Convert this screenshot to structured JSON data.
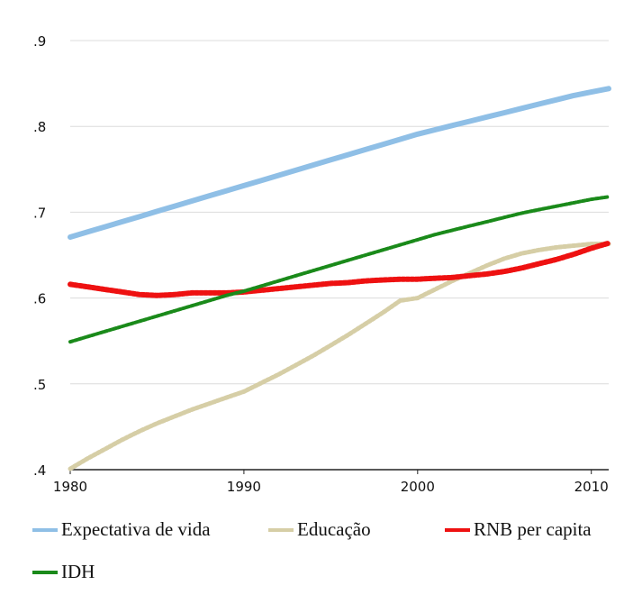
{
  "chart_data": {
    "type": "line",
    "title": "",
    "xlabel": "",
    "ylabel": "",
    "xlim": [
      1980,
      2011
    ],
    "ylim": [
      0.4,
      0.9
    ],
    "x_ticks": [
      1980,
      1990,
      2000,
      2010
    ],
    "x_tick_labels": [
      "1980",
      "1990",
      "2000",
      "2010"
    ],
    "y_ticks": [
      0.4,
      0.5,
      0.6,
      0.7,
      0.8,
      0.9
    ],
    "y_tick_labels": [
      ".4",
      ".5",
      ".6",
      ".7",
      ".8",
      ".9"
    ],
    "grid": "horizontal",
    "legend_position": "bottom",
    "x": [
      1980,
      1981,
      1982,
      1983,
      1984,
      1985,
      1986,
      1987,
      1988,
      1989,
      1990,
      1991,
      1992,
      1993,
      1994,
      1995,
      1996,
      1997,
      1998,
      1999,
      2000,
      2001,
      2002,
      2003,
      2004,
      2005,
      2006,
      2007,
      2008,
      2009,
      2010,
      2011
    ],
    "series": [
      {
        "name": "Expectativa de vida",
        "color": "#8fbfe6",
        "style": "solid",
        "values": [
          0.671,
          0.677,
          0.683,
          0.689,
          0.695,
          0.701,
          0.707,
          0.713,
          0.719,
          0.725,
          0.731,
          0.737,
          0.743,
          0.749,
          0.755,
          0.761,
          0.767,
          0.773,
          0.779,
          0.785,
          0.791,
          0.796,
          0.801,
          0.806,
          0.811,
          0.816,
          0.821,
          0.826,
          0.831,
          0.836,
          0.84,
          0.844
        ]
      },
      {
        "name": "Educação",
        "color": "#d6cea6",
        "style": "dotted",
        "values": [
          0.401,
          0.413,
          0.424,
          0.435,
          0.445,
          0.454,
          0.462,
          0.47,
          0.477,
          0.484,
          0.491,
          0.501,
          0.511,
          0.522,
          0.533,
          0.545,
          0.557,
          0.57,
          0.583,
          0.597,
          0.6,
          0.61,
          0.62,
          0.629,
          0.638,
          0.646,
          0.652,
          0.656,
          0.659,
          0.661,
          0.663,
          0.663
        ]
      },
      {
        "name": "RNB per capita",
        "color": "#ee1111",
        "style": "dotted",
        "values": [
          0.616,
          0.613,
          0.61,
          0.607,
          0.604,
          0.603,
          0.604,
          0.606,
          0.606,
          0.606,
          0.607,
          0.609,
          0.611,
          0.613,
          0.615,
          0.617,
          0.618,
          0.62,
          0.621,
          0.622,
          0.622,
          0.623,
          0.624,
          0.626,
          0.628,
          0.631,
          0.635,
          0.64,
          0.645,
          0.651,
          0.658,
          0.664
        ]
      },
      {
        "name": "IDH",
        "color": "#1a8a1a",
        "style": "dotted",
        "values": [
          0.549,
          0.555,
          0.561,
          0.567,
          0.573,
          0.579,
          0.585,
          0.591,
          0.597,
          0.603,
          0.608,
          0.614,
          0.62,
          0.626,
          0.632,
          0.638,
          0.644,
          0.65,
          0.656,
          0.662,
          0.668,
          0.674,
          0.679,
          0.684,
          0.689,
          0.694,
          0.699,
          0.703,
          0.707,
          0.711,
          0.715,
          0.718
        ]
      }
    ]
  }
}
